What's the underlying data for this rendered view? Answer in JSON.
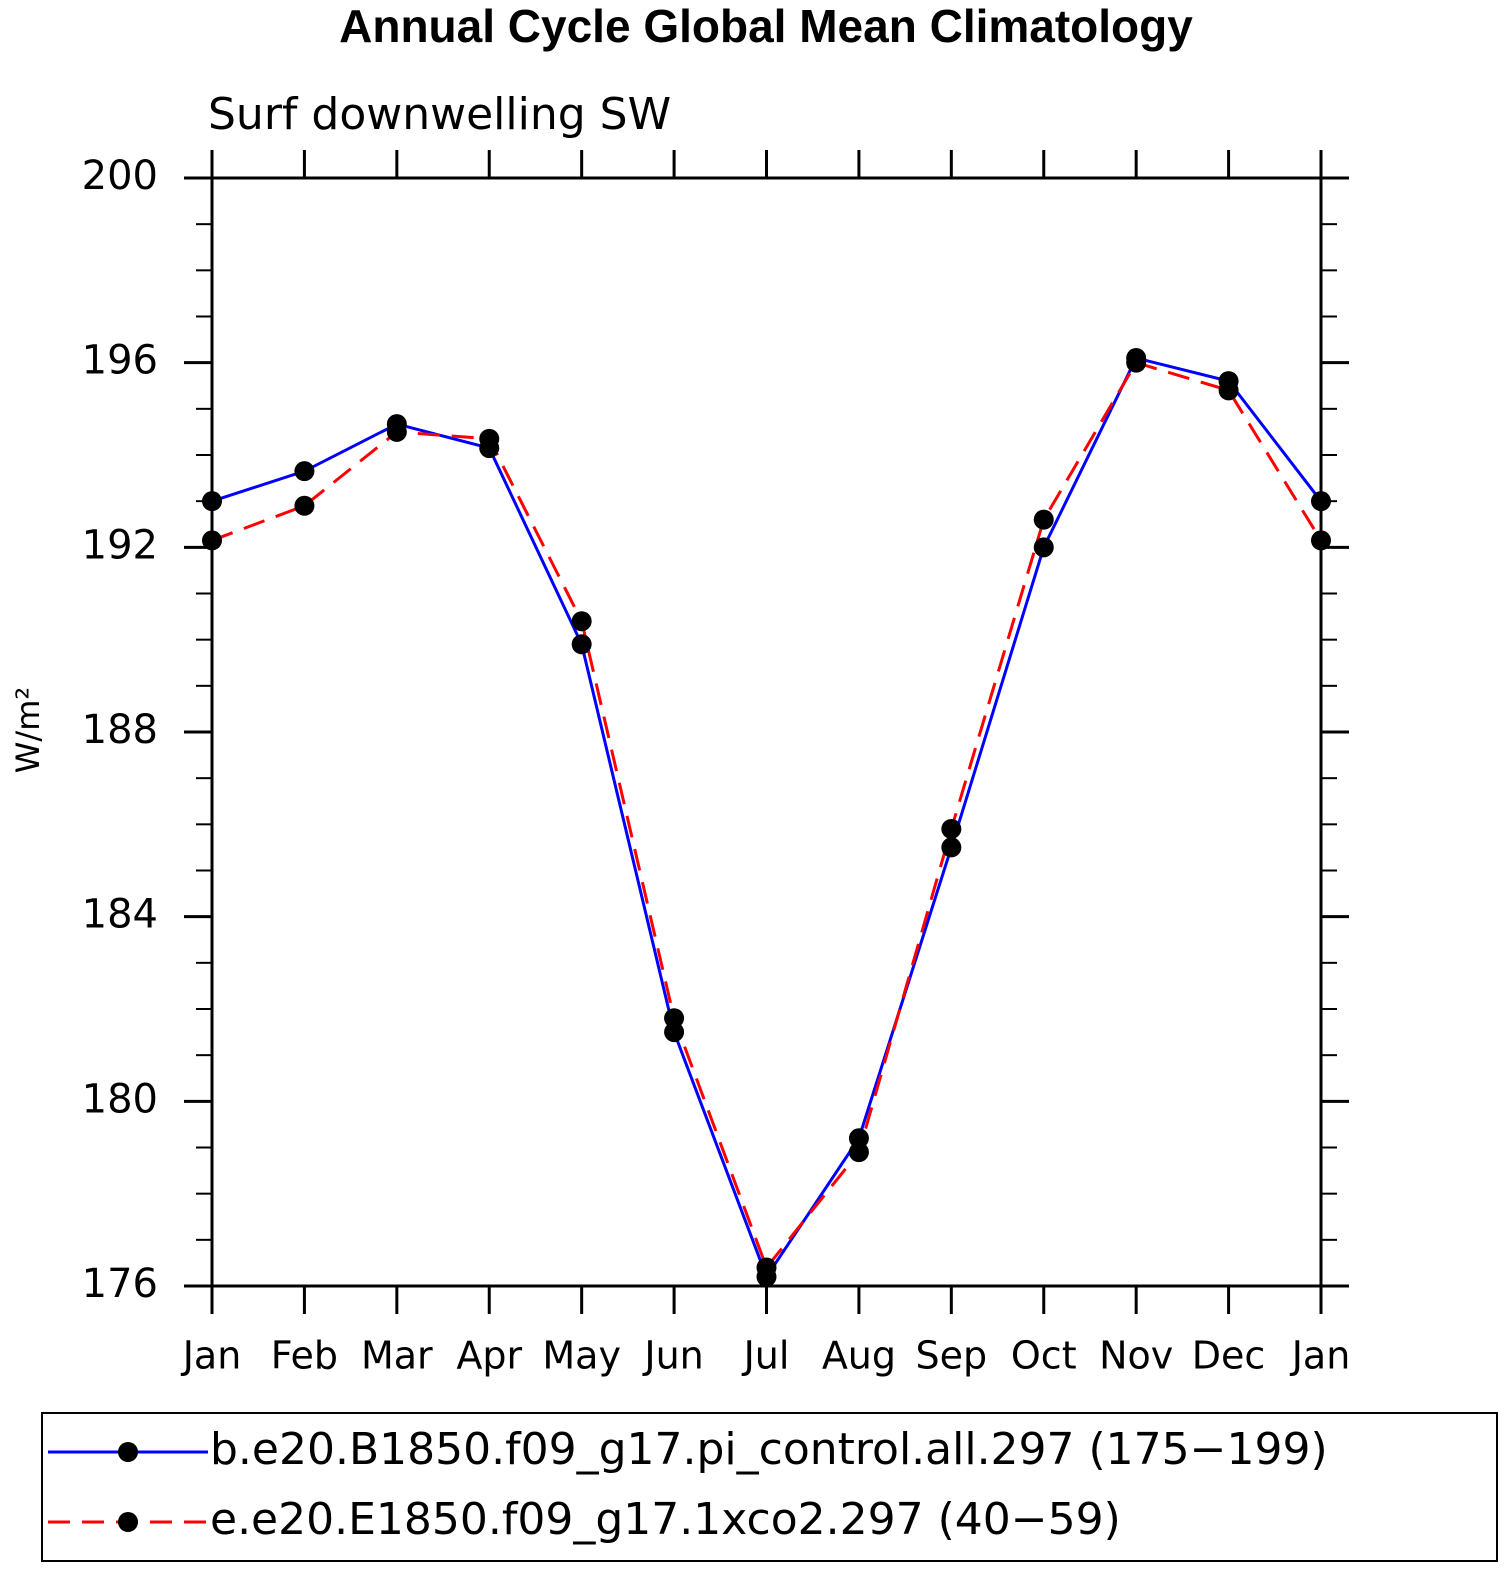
{
  "chart_data": {
    "type": "line",
    "title": "Annual Cycle Global Mean Climatology",
    "subtitle": "Surf downwelling SW",
    "ylabel": "W/m²",
    "categories": [
      "Jan",
      "Feb",
      "Mar",
      "Apr",
      "May",
      "Jun",
      "Jul",
      "Aug",
      "Sep",
      "Oct",
      "Nov",
      "Dec",
      "Jan"
    ],
    "series": [
      {
        "name": "b.e20.B1850.f09_g17.pi_control.all.297 (175−199)",
        "color": "#0000ff",
        "dashed": false,
        "values": [
          193.0,
          193.65,
          194.67,
          194.15,
          189.9,
          181.5,
          176.2,
          179.2,
          185.5,
          192.0,
          196.1,
          195.6,
          193.0
        ]
      },
      {
        "name": "e.e20.E1850.f09_g17.1xco2.297 (40−59)",
        "color": "#ff0000",
        "dashed": true,
        "values": [
          192.15,
          192.9,
          194.5,
          194.35,
          190.4,
          181.8,
          176.4,
          178.9,
          185.9,
          192.6,
          196.0,
          195.4,
          192.15
        ]
      }
    ],
    "ylim": [
      176,
      200
    ],
    "yticks": [
      176,
      180,
      184,
      188,
      192,
      196,
      200
    ],
    "yminorticks": [
      177,
      178,
      179,
      181,
      182,
      183,
      185,
      186,
      187,
      189,
      190,
      191,
      193,
      194,
      195,
      197,
      198,
      199
    ]
  }
}
